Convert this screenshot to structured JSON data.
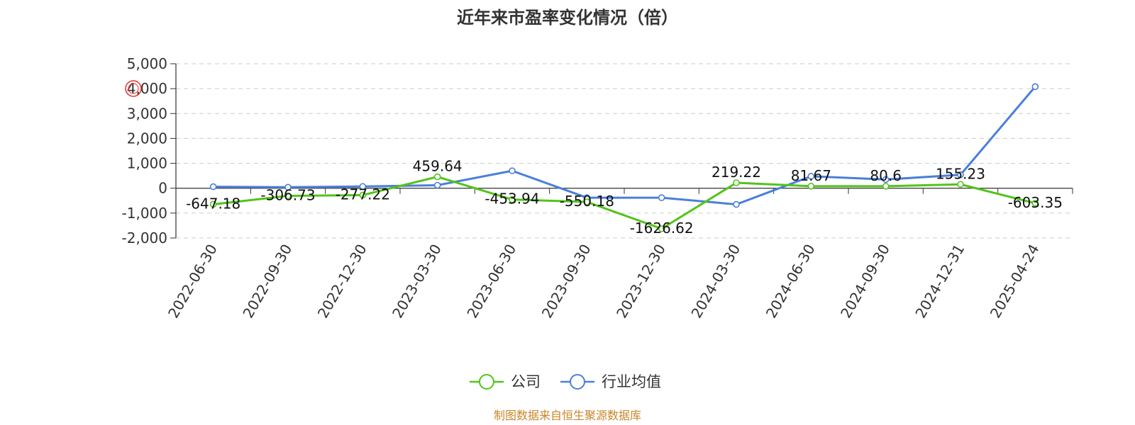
{
  "chart_data": {
    "type": "line",
    "title": "近年来市盈率变化情况（倍）",
    "categories": [
      "2022-06-30",
      "2022-09-30",
      "2022-12-30",
      "2023-03-30",
      "2023-06-30",
      "2023-09-30",
      "2023-12-30",
      "2024-03-30",
      "2024-06-30",
      "2024-09-30",
      "2024-12-31",
      "2025-04-24"
    ],
    "series": [
      {
        "name": "公司",
        "color": "#52c41a",
        "values": [
          -647.18,
          -306.73,
          -277.22,
          459.64,
          -453.94,
          -550.18,
          -1626.62,
          219.22,
          81.67,
          80.6,
          155.23,
          -603.35
        ],
        "labels": [
          "-647.18",
          "-306.73",
          "-277.22",
          "459.64",
          "-453.94",
          "-550.18",
          "-1626.62",
          "219.22",
          "81.67",
          "80.6",
          "155.23",
          "-603.35"
        ]
      },
      {
        "name": "行业均值",
        "color": "#4a7fdb",
        "values": [
          60,
          40,
          70,
          120,
          700,
          -380,
          -380,
          -650,
          480,
          350,
          540,
          4080
        ]
      }
    ],
    "yticks": [
      -2000,
      -1000,
      0,
      1000,
      2000,
      3000,
      4000,
      5000
    ],
    "ytick_labels": [
      "-2,000",
      "-1,000",
      "0",
      "1,000",
      "2,000",
      "3,000",
      "4,000",
      "5,000"
    ],
    "ylim": [
      -2000,
      5000
    ],
    "grid": true,
    "legend_position": "bottom"
  },
  "source_text": "制图数据来自恒生聚源数据库"
}
